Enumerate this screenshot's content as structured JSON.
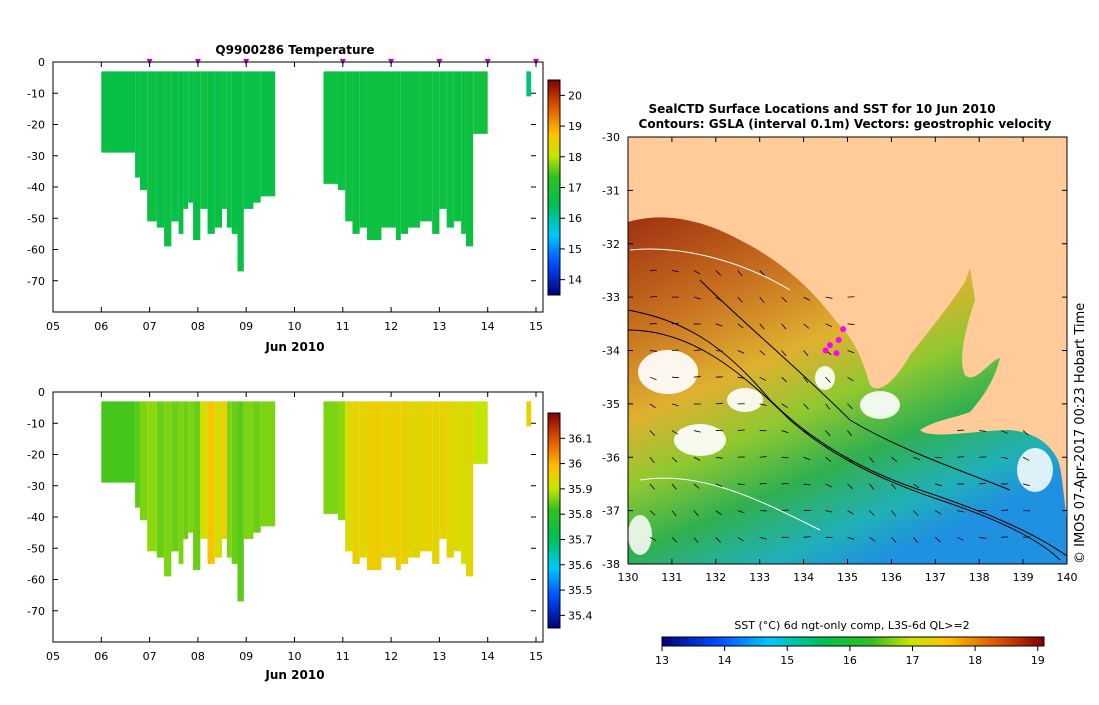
{
  "temperature_plot": {
    "title": "Q9900286  Temperature",
    "xlabel": "Jun 2010",
    "x_ticks": [
      "05",
      "06",
      "07",
      "08",
      "09",
      "10",
      "11",
      "12",
      "13",
      "14",
      "15"
    ],
    "y_ticks": [
      "0",
      "-10",
      "-20",
      "-30",
      "-40",
      "-50",
      "-60",
      "-70"
    ],
    "colorbar_ticks": [
      "20",
      "19",
      "18",
      "17",
      "16",
      "15",
      "14"
    ]
  },
  "salinity_plot": {
    "xlabel": "Jun 2010",
    "x_ticks": [
      "05",
      "06",
      "07",
      "08",
      "09",
      "10",
      "11",
      "12",
      "13",
      "14",
      "15"
    ],
    "y_ticks": [
      "0",
      "-10",
      "-20",
      "-30",
      "-40",
      "-50",
      "-60",
      "-70"
    ],
    "colorbar_ticks": [
      "36.1",
      "36",
      "35.9",
      "35.8",
      "35.7",
      "35.6",
      "35.5",
      "35.4"
    ]
  },
  "map": {
    "title_line1": "SealCTD Surface Locations and SST for 10 Jun 2010",
    "title_line2": "Contours: GSLA (interval 0.1m) Vectors: geostrophic velocity",
    "lat_ticks": [
      "-30",
      "-31",
      "-32",
      "-33",
      "-34",
      "-35",
      "-36",
      "-37",
      "-38"
    ],
    "lon_ticks": [
      "130",
      "131",
      "132",
      "133",
      "134",
      "135",
      "136",
      "137",
      "138",
      "139",
      "140"
    ],
    "credit": "© IMOS 07-Apr-2017 00:23 Hobart Time",
    "colorbar_label": "SST (°C) 6d ngt-only comp, L3S-6d QL>=2",
    "colorbar_ticks": [
      "13",
      "14",
      "15",
      "16",
      "17",
      "18",
      "19"
    ]
  },
  "chart_data": [
    {
      "type": "heatmap",
      "title": "Q9900286  Temperature",
      "xlabel": "Jun 2010",
      "ylabel": "",
      "x_range_days": [
        5,
        15
      ],
      "ylim": [
        -80,
        0
      ],
      "colorbar_range": [
        13.5,
        20.5
      ],
      "profiles": [
        {
          "day": 6.0,
          "depth": -29,
          "value": 16.6
        },
        {
          "day": 6.7,
          "depth": -37,
          "value": 16.6
        },
        {
          "day": 6.8,
          "depth": -41,
          "value": 16.6
        },
        {
          "day": 6.95,
          "depth": -51,
          "value": 16.7
        },
        {
          "day": 7.15,
          "depth": -53,
          "value": 16.6
        },
        {
          "day": 7.3,
          "depth": -59,
          "value": 16.7
        },
        {
          "day": 7.45,
          "depth": -51,
          "value": 16.6
        },
        {
          "day": 7.6,
          "depth": -55,
          "value": 16.6
        },
        {
          "day": 7.7,
          "depth": -47,
          "value": 16.6
        },
        {
          "day": 7.8,
          "depth": -45,
          "value": 16.6
        },
        {
          "day": 7.9,
          "depth": -57,
          "value": 16.6
        },
        {
          "day": 8.05,
          "depth": -47,
          "value": 16.7
        },
        {
          "day": 8.2,
          "depth": -55,
          "value": 16.6
        },
        {
          "day": 8.35,
          "depth": -53,
          "value": 16.6
        },
        {
          "day": 8.5,
          "depth": -47,
          "value": 16.7
        },
        {
          "day": 8.6,
          "depth": -53,
          "value": 16.6
        },
        {
          "day": 8.7,
          "depth": -55,
          "value": 16.6
        },
        {
          "day": 8.82,
          "depth": -67,
          "value": 16.6
        },
        {
          "day": 8.95,
          "depth": -47,
          "value": 16.6
        },
        {
          "day": 9.15,
          "depth": -45,
          "value": 16.6
        },
        {
          "day": 9.3,
          "depth": -43,
          "value": 16.6
        },
        {
          "day": 10.6,
          "depth": -39,
          "value": 16.7
        },
        {
          "day": 10.9,
          "depth": -41,
          "value": 16.7
        },
        {
          "day": 11.05,
          "depth": -51,
          "value": 16.7
        },
        {
          "day": 11.2,
          "depth": -55,
          "value": 16.7
        },
        {
          "day": 11.35,
          "depth": -53,
          "value": 16.7
        },
        {
          "day": 11.5,
          "depth": -57,
          "value": 16.7
        },
        {
          "day": 11.8,
          "depth": -53,
          "value": 16.7
        },
        {
          "day": 12.1,
          "depth": -57,
          "value": 16.7
        },
        {
          "day": 12.2,
          "depth": -55,
          "value": 16.7
        },
        {
          "day": 12.35,
          "depth": -53,
          "value": 16.7
        },
        {
          "day": 12.6,
          "depth": -51,
          "value": 16.7
        },
        {
          "day": 12.85,
          "depth": -55,
          "value": 16.7
        },
        {
          "day": 13.0,
          "depth": -47,
          "value": 16.7
        },
        {
          "day": 13.15,
          "depth": -53,
          "value": 16.7
        },
        {
          "day": 13.3,
          "depth": -51,
          "value": 16.7
        },
        {
          "day": 13.45,
          "depth": -55,
          "value": 16.7
        },
        {
          "day": 13.55,
          "depth": -59,
          "value": 16.7
        },
        {
          "day": 13.7,
          "depth": -23,
          "value": 16.8
        },
        {
          "day": 14.8,
          "depth": -11,
          "value": 16.2
        }
      ],
      "profile_markers_days": [
        7,
        8,
        9,
        11,
        12,
        13,
        14,
        15
      ]
    },
    {
      "type": "heatmap",
      "title": "",
      "xlabel": "Jun 2010",
      "ylabel": "",
      "x_range_days": [
        5,
        15
      ],
      "ylim": [
        -80,
        0
      ],
      "colorbar_range": [
        35.35,
        36.2
      ],
      "profiles": [
        {
          "day": 6.0,
          "depth": -29,
          "value": 35.83
        },
        {
          "day": 6.7,
          "depth": -37,
          "value": 35.84
        },
        {
          "day": 6.8,
          "depth": -41,
          "value": 35.86
        },
        {
          "day": 6.95,
          "depth": -51,
          "value": 35.87
        },
        {
          "day": 7.15,
          "depth": -53,
          "value": 35.85
        },
        {
          "day": 7.3,
          "depth": -59,
          "value": 35.86
        },
        {
          "day": 7.45,
          "depth": -51,
          "value": 35.85
        },
        {
          "day": 7.6,
          "depth": -55,
          "value": 35.86
        },
        {
          "day": 7.7,
          "depth": -47,
          "value": 35.85
        },
        {
          "day": 7.8,
          "depth": -45,
          "value": 35.86
        },
        {
          "day": 7.9,
          "depth": -57,
          "value": 35.85
        },
        {
          "day": 8.05,
          "depth": -47,
          "value": 35.92
        },
        {
          "day": 8.2,
          "depth": -55,
          "value": 35.98
        },
        {
          "day": 8.35,
          "depth": -53,
          "value": 35.92
        },
        {
          "day": 8.5,
          "depth": -47,
          "value": 35.96
        },
        {
          "day": 8.6,
          "depth": -53,
          "value": 35.86
        },
        {
          "day": 8.7,
          "depth": -55,
          "value": 35.85
        },
        {
          "day": 8.82,
          "depth": -67,
          "value": 35.84
        },
        {
          "day": 8.95,
          "depth": -47,
          "value": 35.86
        },
        {
          "day": 9.15,
          "depth": -45,
          "value": 35.85
        },
        {
          "day": 9.3,
          "depth": -43,
          "value": 35.86
        },
        {
          "day": 10.6,
          "depth": -39,
          "value": 35.86
        },
        {
          "day": 10.9,
          "depth": -41,
          "value": 35.87
        },
        {
          "day": 11.05,
          "depth": -51,
          "value": 35.93
        },
        {
          "day": 11.2,
          "depth": -55,
          "value": 35.95
        },
        {
          "day": 11.35,
          "depth": -53,
          "value": 35.94
        },
        {
          "day": 11.5,
          "depth": -57,
          "value": 35.96
        },
        {
          "day": 11.8,
          "depth": -53,
          "value": 35.95
        },
        {
          "day": 12.1,
          "depth": -57,
          "value": 35.96
        },
        {
          "day": 12.2,
          "depth": -55,
          "value": 35.95
        },
        {
          "day": 12.35,
          "depth": -53,
          "value": 35.94
        },
        {
          "day": 12.6,
          "depth": -51,
          "value": 35.95
        },
        {
          "day": 12.85,
          "depth": -55,
          "value": 35.94
        },
        {
          "day": 13.0,
          "depth": -47,
          "value": 35.95
        },
        {
          "day": 13.15,
          "depth": -53,
          "value": 35.94
        },
        {
          "day": 13.3,
          "depth": -51,
          "value": 35.93
        },
        {
          "day": 13.45,
          "depth": -55,
          "value": 35.92
        },
        {
          "day": 13.55,
          "depth": -59,
          "value": 35.94
        },
        {
          "day": 13.7,
          "depth": -23,
          "value": 35.9
        },
        {
          "day": 14.8,
          "depth": -11,
          "value": 35.95
        }
      ]
    },
    {
      "type": "heatmap",
      "title": "SealCTD Surface Locations and SST for 10 Jun 2010",
      "xlabel": "",
      "ylabel": "",
      "xlim": [
        130,
        140
      ],
      "ylim": [
        -38,
        -30
      ],
      "colorbar_range": [
        13,
        19.1
      ],
      "land_color": "#FFCC99",
      "ctd_locations": [
        {
          "lon": 134.9,
          "lat": -33.6
        },
        {
          "lon": 134.8,
          "lat": -33.8
        },
        {
          "lon": 134.6,
          "lat": -33.9
        },
        {
          "lon": 134.5,
          "lat": -34.0
        },
        {
          "lon": 134.75,
          "lat": -34.05
        }
      ]
    }
  ]
}
